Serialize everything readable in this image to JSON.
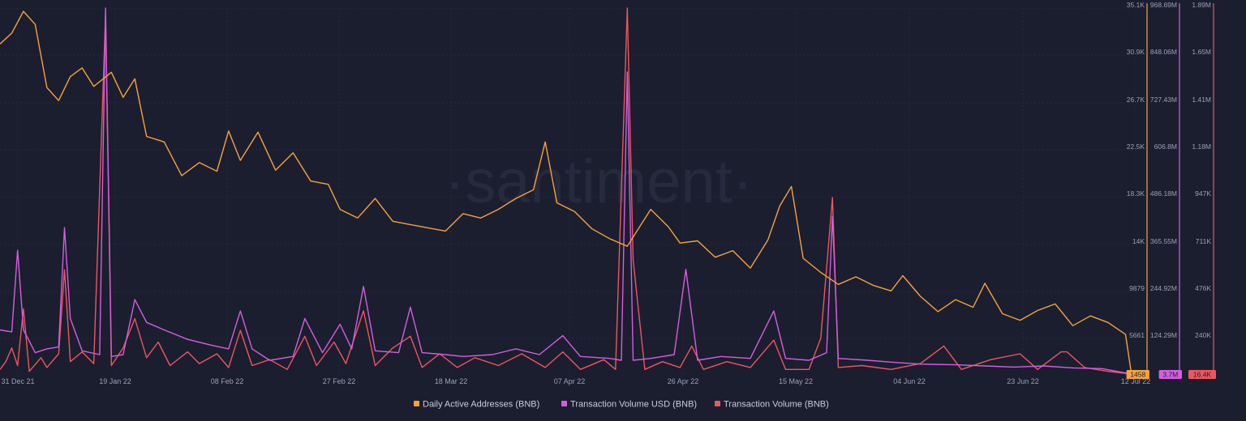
{
  "watermark": "·santiment·",
  "chart_data": {
    "type": "line",
    "title": "",
    "grid": true,
    "legend_position": "bottom-center",
    "x_ticks": [
      "31 Dec 21",
      "19 Jan 22",
      "08 Feb 22",
      "27 Feb 22",
      "18 Mar 22",
      "07 Apr 22",
      "26 Apr 22",
      "15 May 22",
      "04 Jun 22",
      "23 Jun 22",
      "12 Jul 22"
    ],
    "x_range": [
      "2021-12-31",
      "2022-07-13"
    ],
    "axes": [
      {
        "id": "daa",
        "color": "#f7a23b",
        "ticks": [
          "35.1K",
          "30.9K",
          "26.7K",
          "22.5K",
          "18.3K",
          "14K",
          "9879",
          "5661"
        ],
        "range": [
          1458,
          35100
        ],
        "last_value": "1458"
      },
      {
        "id": "usd",
        "color": "#d35ee0",
        "ticks": [
          "968.69M",
          "848.06M",
          "727.43M",
          "606.8M",
          "486.18M",
          "365.55M",
          "244.92M",
          "124.29M"
        ],
        "range": [
          3700000,
          968690000
        ],
        "last_value": "3.7M"
      },
      {
        "id": "vol",
        "color": "#f0555e",
        "ticks": [
          "1.89M",
          "1.65M",
          "1.41M",
          "1.18M",
          "947K",
          "711K",
          "476K",
          "240K"
        ],
        "range": [
          16400,
          1890000
        ],
        "last_value": "16.4K"
      }
    ],
    "series": [
      {
        "name": "Daily Active Addresses (BNB)",
        "axis": "daa",
        "color": "#f7a23b",
        "points": [
          [
            "2021-12-31",
            31800
          ],
          [
            "2022-01-02",
            32800
          ],
          [
            "2022-01-04",
            34800
          ],
          [
            "2022-01-06",
            33600
          ],
          [
            "2022-01-08",
            27800
          ],
          [
            "2022-01-10",
            26600
          ],
          [
            "2022-01-12",
            28800
          ],
          [
            "2022-01-14",
            29600
          ],
          [
            "2022-01-16",
            27900
          ],
          [
            "2022-01-19",
            29200
          ],
          [
            "2022-01-21",
            26900
          ],
          [
            "2022-01-23",
            28600
          ],
          [
            "2022-01-25",
            23300
          ],
          [
            "2022-01-28",
            22800
          ],
          [
            "2022-01-31",
            19700
          ],
          [
            "2022-02-03",
            20900
          ],
          [
            "2022-02-06",
            20100
          ],
          [
            "2022-02-08",
            23800
          ],
          [
            "2022-02-10",
            21100
          ],
          [
            "2022-02-13",
            23700
          ],
          [
            "2022-02-16",
            20200
          ],
          [
            "2022-02-19",
            21800
          ],
          [
            "2022-02-22",
            19200
          ],
          [
            "2022-02-25",
            18900
          ],
          [
            "2022-02-27",
            16600
          ],
          [
            "2022-03-02",
            15800
          ],
          [
            "2022-03-05",
            17600
          ],
          [
            "2022-03-08",
            15500
          ],
          [
            "2022-03-11",
            15200
          ],
          [
            "2022-03-14",
            14900
          ],
          [
            "2022-03-17",
            14600
          ],
          [
            "2022-03-20",
            16200
          ],
          [
            "2022-03-23",
            15800
          ],
          [
            "2022-03-26",
            16600
          ],
          [
            "2022-03-29",
            17600
          ],
          [
            "2022-04-01",
            18400
          ],
          [
            "2022-04-03",
            22800
          ],
          [
            "2022-04-05",
            17200
          ],
          [
            "2022-04-08",
            16400
          ],
          [
            "2022-04-11",
            14800
          ],
          [
            "2022-04-14",
            13900
          ],
          [
            "2022-04-17",
            13200
          ],
          [
            "2022-04-19",
            14900
          ],
          [
            "2022-04-21",
            16600
          ],
          [
            "2022-04-24",
            15000
          ],
          [
            "2022-04-26",
            13500
          ],
          [
            "2022-04-29",
            13700
          ],
          [
            "2022-05-02",
            12200
          ],
          [
            "2022-05-05",
            12800
          ],
          [
            "2022-05-08",
            11200
          ],
          [
            "2022-05-11",
            13800
          ],
          [
            "2022-05-13",
            16900
          ],
          [
            "2022-05-15",
            18700
          ],
          [
            "2022-05-17",
            12100
          ],
          [
            "2022-05-20",
            10800
          ],
          [
            "2022-05-23",
            9700
          ],
          [
            "2022-05-26",
            10400
          ],
          [
            "2022-05-29",
            9600
          ],
          [
            "2022-06-01",
            9100
          ],
          [
            "2022-06-03",
            10500
          ],
          [
            "2022-06-06",
            8600
          ],
          [
            "2022-06-09",
            7200
          ],
          [
            "2022-06-12",
            8300
          ],
          [
            "2022-06-15",
            7600
          ],
          [
            "2022-06-17",
            9800
          ],
          [
            "2022-06-20",
            7000
          ],
          [
            "2022-06-23",
            6400
          ],
          [
            "2022-06-26",
            7300
          ],
          [
            "2022-06-29",
            7900
          ],
          [
            "2022-07-02",
            5900
          ],
          [
            "2022-07-05",
            6800
          ],
          [
            "2022-07-08",
            6200
          ],
          [
            "2022-07-11",
            5100
          ],
          [
            "2022-07-12",
            1458
          ]
        ]
      },
      {
        "name": "Transaction Volume USD (BNB)",
        "axis": "usd",
        "color": "#d35ee0",
        "points": [
          [
            "2021-12-31",
            120000000
          ],
          [
            "2022-01-02",
            115000000
          ],
          [
            "2022-01-03",
            330000000
          ],
          [
            "2022-01-04",
            120000000
          ],
          [
            "2022-01-06",
            60000000
          ],
          [
            "2022-01-08",
            70000000
          ],
          [
            "2022-01-10",
            75000000
          ],
          [
            "2022-01-11",
            390000000
          ],
          [
            "2022-01-12",
            150000000
          ],
          [
            "2022-01-14",
            65000000
          ],
          [
            "2022-01-17",
            55000000
          ],
          [
            "2022-01-18",
            968690000
          ],
          [
            "2022-01-19",
            50000000
          ],
          [
            "2022-01-21",
            55000000
          ],
          [
            "2022-01-23",
            200000000
          ],
          [
            "2022-01-25",
            140000000
          ],
          [
            "2022-01-28",
            120000000
          ],
          [
            "2022-02-01",
            95000000
          ],
          [
            "2022-02-05",
            80000000
          ],
          [
            "2022-02-08",
            70000000
          ],
          [
            "2022-02-10",
            170000000
          ],
          [
            "2022-02-12",
            70000000
          ],
          [
            "2022-02-15",
            40000000
          ],
          [
            "2022-02-19",
            50000000
          ],
          [
            "2022-02-21",
            150000000
          ],
          [
            "2022-02-24",
            60000000
          ],
          [
            "2022-02-27",
            135000000
          ],
          [
            "2022-03-01",
            70000000
          ],
          [
            "2022-03-03",
            235000000
          ],
          [
            "2022-03-05",
            65000000
          ],
          [
            "2022-03-09",
            60000000
          ],
          [
            "2022-03-11",
            180000000
          ],
          [
            "2022-03-13",
            60000000
          ],
          [
            "2022-03-17",
            55000000
          ],
          [
            "2022-03-20",
            50000000
          ],
          [
            "2022-03-25",
            55000000
          ],
          [
            "2022-03-29",
            70000000
          ],
          [
            "2022-04-02",
            55000000
          ],
          [
            "2022-04-06",
            105000000
          ],
          [
            "2022-04-09",
            50000000
          ],
          [
            "2022-04-14",
            45000000
          ],
          [
            "2022-04-16",
            40000000
          ],
          [
            "2022-04-17",
            800000000
          ],
          [
            "2022-04-18",
            40000000
          ],
          [
            "2022-04-21",
            45000000
          ],
          [
            "2022-04-25",
            55000000
          ],
          [
            "2022-04-27",
            280000000
          ],
          [
            "2022-04-29",
            40000000
          ],
          [
            "2022-05-03",
            50000000
          ],
          [
            "2022-05-08",
            45000000
          ],
          [
            "2022-05-12",
            170000000
          ],
          [
            "2022-05-14",
            45000000
          ],
          [
            "2022-05-18",
            40000000
          ],
          [
            "2022-05-21",
            60000000
          ],
          [
            "2022-05-22",
            420000000
          ],
          [
            "2022-05-23",
            45000000
          ],
          [
            "2022-05-28",
            40000000
          ],
          [
            "2022-06-01",
            35000000
          ],
          [
            "2022-06-06",
            30000000
          ],
          [
            "2022-06-12",
            28000000
          ],
          [
            "2022-06-17",
            25000000
          ],
          [
            "2022-06-22",
            22000000
          ],
          [
            "2022-06-27",
            25000000
          ],
          [
            "2022-07-02",
            20000000
          ],
          [
            "2022-07-07",
            18000000
          ],
          [
            "2022-07-12",
            3700000
          ]
        ]
      },
      {
        "name": "Transaction Volume (BNB)",
        "axis": "vol",
        "color": "#f0555e",
        "points": [
          [
            "2021-12-31",
            40000
          ],
          [
            "2022-01-01",
            80000
          ],
          [
            "2022-01-02",
            150000
          ],
          [
            "2022-01-03",
            60000
          ],
          [
            "2022-01-04",
            350000
          ],
          [
            "2022-01-05",
            30000
          ],
          [
            "2022-01-07",
            100000
          ],
          [
            "2022-01-08",
            50000
          ],
          [
            "2022-01-10",
            120000
          ],
          [
            "2022-01-11",
            550000
          ],
          [
            "2022-01-12",
            80000
          ],
          [
            "2022-01-14",
            130000
          ],
          [
            "2022-01-16",
            70000
          ],
          [
            "2022-01-18",
            1850000
          ],
          [
            "2022-01-19",
            60000
          ],
          [
            "2022-01-21",
            150000
          ],
          [
            "2022-01-23",
            300000
          ],
          [
            "2022-01-25",
            100000
          ],
          [
            "2022-01-27",
            180000
          ],
          [
            "2022-01-29",
            60000
          ],
          [
            "2022-02-01",
            130000
          ],
          [
            "2022-02-03",
            70000
          ],
          [
            "2022-02-06",
            120000
          ],
          [
            "2022-02-08",
            50000
          ],
          [
            "2022-02-10",
            240000
          ],
          [
            "2022-02-12",
            60000
          ],
          [
            "2022-02-15",
            90000
          ],
          [
            "2022-02-18",
            40000
          ],
          [
            "2022-02-21",
            210000
          ],
          [
            "2022-02-23",
            60000
          ],
          [
            "2022-02-26",
            180000
          ],
          [
            "2022-02-28",
            70000
          ],
          [
            "2022-03-03",
            340000
          ],
          [
            "2022-03-05",
            60000
          ],
          [
            "2022-03-08",
            150000
          ],
          [
            "2022-03-11",
            210000
          ],
          [
            "2022-03-13",
            50000
          ],
          [
            "2022-03-16",
            120000
          ],
          [
            "2022-03-19",
            50000
          ],
          [
            "2022-03-22",
            100000
          ],
          [
            "2022-03-26",
            60000
          ],
          [
            "2022-03-30",
            120000
          ],
          [
            "2022-04-03",
            50000
          ],
          [
            "2022-04-06",
            130000
          ],
          [
            "2022-04-09",
            40000
          ],
          [
            "2022-04-13",
            90000
          ],
          [
            "2022-04-15",
            40000
          ],
          [
            "2022-04-17",
            1890000
          ],
          [
            "2022-04-18",
            600000
          ],
          [
            "2022-04-20",
            40000
          ],
          [
            "2022-04-23",
            80000
          ],
          [
            "2022-04-26",
            50000
          ],
          [
            "2022-04-28",
            160000
          ],
          [
            "2022-04-30",
            40000
          ],
          [
            "2022-05-04",
            80000
          ],
          [
            "2022-05-08",
            50000
          ],
          [
            "2022-05-12",
            190000
          ],
          [
            "2022-05-14",
            40000
          ],
          [
            "2022-05-18",
            40000
          ],
          [
            "2022-05-20",
            200000
          ],
          [
            "2022-05-22",
            920000
          ],
          [
            "2022-05-23",
            50000
          ],
          [
            "2022-05-27",
            60000
          ],
          [
            "2022-06-01",
            40000
          ],
          [
            "2022-06-06",
            70000
          ],
          [
            "2022-06-10",
            160000
          ],
          [
            "2022-06-13",
            40000
          ],
          [
            "2022-06-18",
            90000
          ],
          [
            "2022-06-23",
            120000
          ],
          [
            "2022-06-26",
            40000
          ],
          [
            "2022-06-30",
            130000
          ],
          [
            "2022-07-01",
            130000
          ],
          [
            "2022-07-04",
            50000
          ],
          [
            "2022-07-08",
            30000
          ],
          [
            "2022-07-12",
            16400
          ]
        ]
      }
    ]
  }
}
